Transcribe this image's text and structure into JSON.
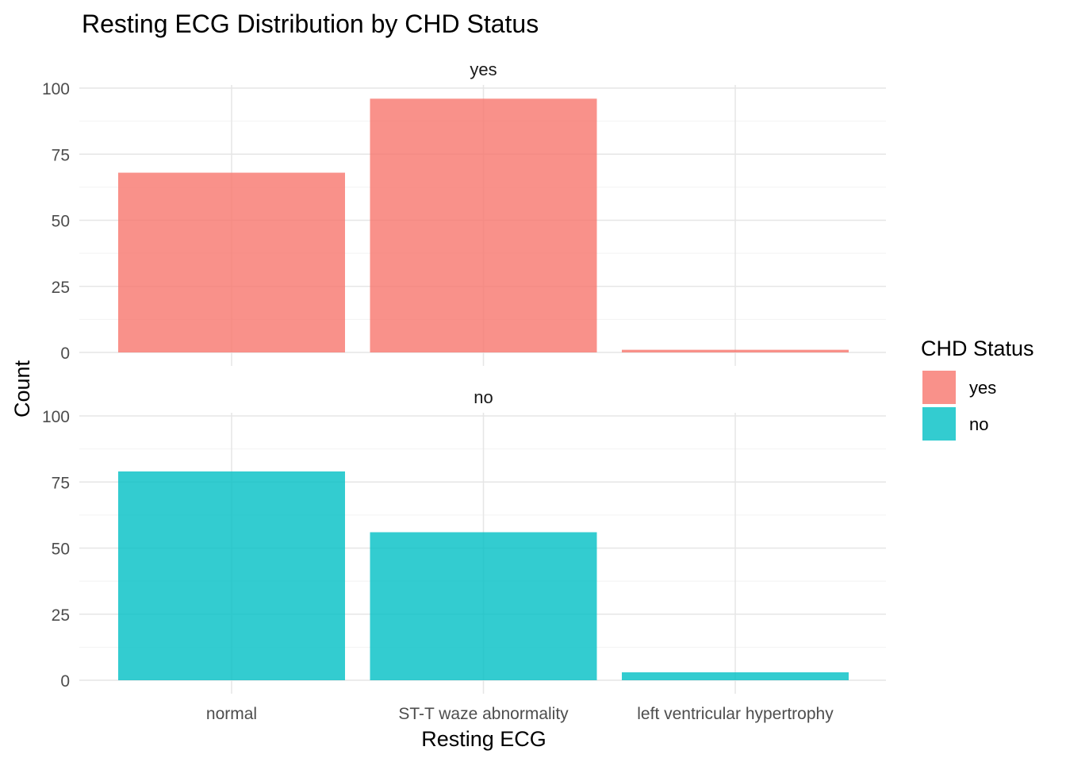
{
  "chart_data": {
    "type": "bar",
    "title": "Resting ECG Distribution by CHD Status",
    "xlabel": "Resting ECG",
    "ylabel": "Count",
    "categories": [
      "normal",
      "ST-T waze abnormality",
      "left ventricular hypertrophy"
    ],
    "ylim": [
      0,
      100
    ],
    "yticks": [
      "0",
      "25",
      "50",
      "75",
      "100"
    ],
    "grid": true,
    "facets": [
      {
        "label": "yes",
        "values": [
          68,
          96,
          1
        ],
        "color": "#F8766D"
      },
      {
        "label": "no",
        "values": [
          79,
          56,
          3
        ],
        "color": "#00BFC4"
      }
    ],
    "legend": {
      "title": "CHD Status",
      "position": "right",
      "entries": [
        {
          "label": "yes",
          "color": "#F8766D"
        },
        {
          "label": "no",
          "color": "#00BFC4"
        }
      ]
    }
  }
}
